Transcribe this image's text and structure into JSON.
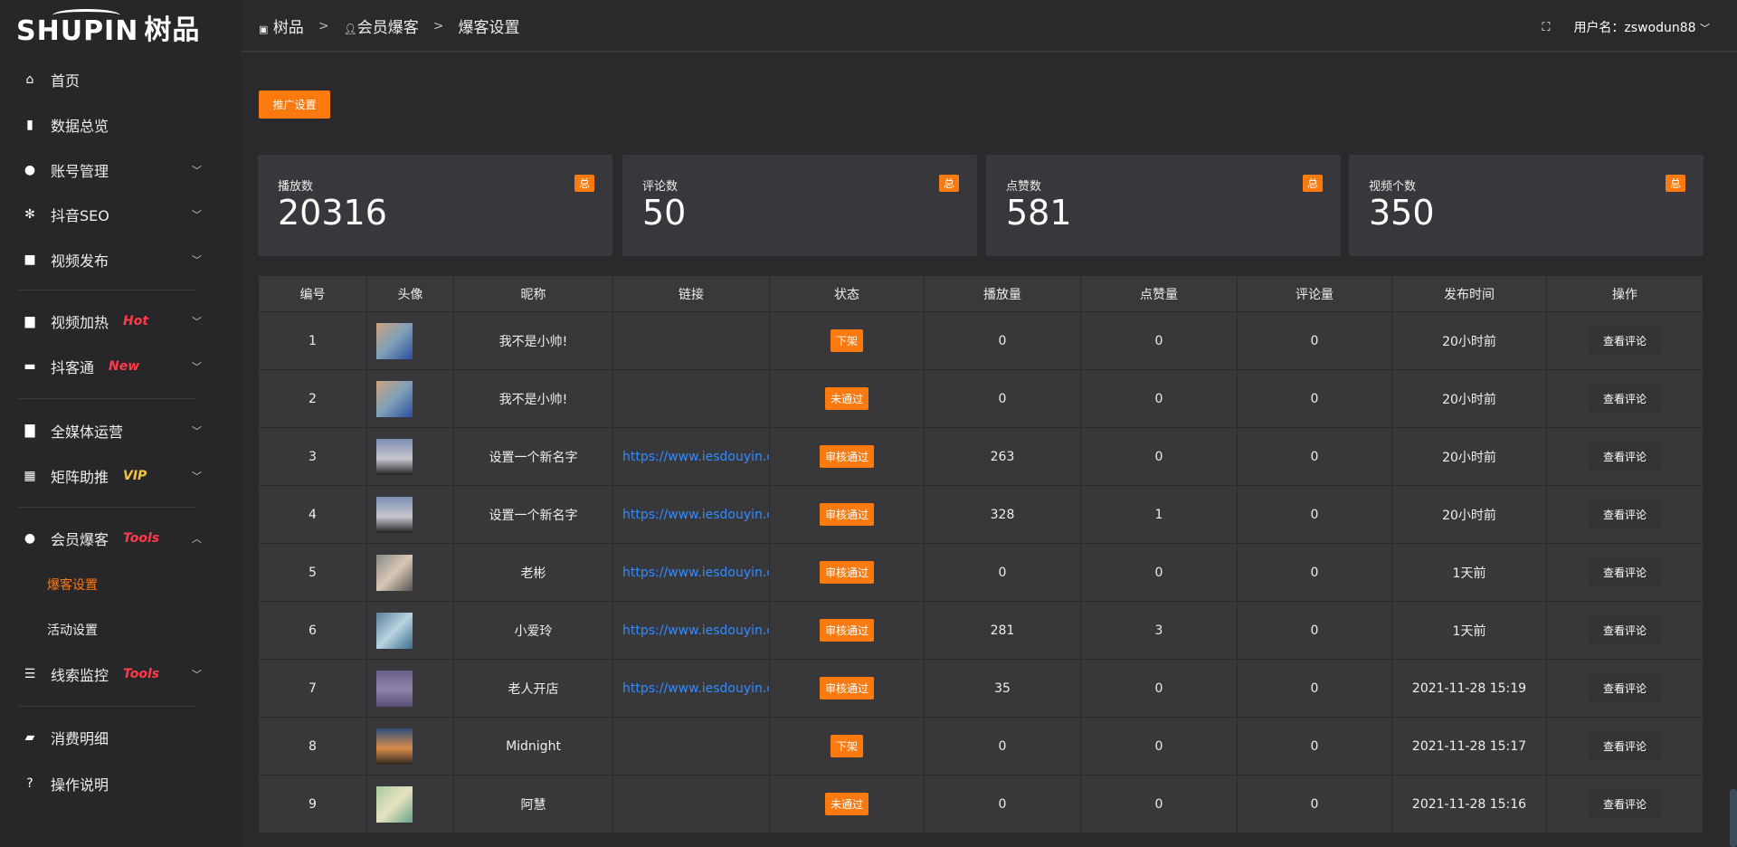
{
  "brand": {
    "logo_text": "SHUPIN",
    "logo_cn": "树品"
  },
  "sidebar": {
    "items": [
      {
        "label": "首页",
        "icon": "home-icon"
      },
      {
        "label": "数据总览",
        "icon": "bar-chart-icon"
      },
      {
        "label": "账号管理",
        "icon": "user-icon"
      },
      {
        "label": "抖音SEO",
        "icon": "gear-icon"
      },
      {
        "label": "视频发布",
        "icon": "camera-icon"
      },
      {
        "label": "视频加热",
        "icon": "monitor-icon",
        "tag": "Hot"
      },
      {
        "label": "抖客通",
        "icon": "chat-icon",
        "tag": "New"
      },
      {
        "label": "全媒体运营",
        "icon": "display-icon"
      },
      {
        "label": "矩阵助推",
        "icon": "grid-icon",
        "tag": "VIP"
      },
      {
        "label": "会员爆客",
        "icon": "user-icon",
        "tag": "Tools"
      },
      {
        "label": "线索监控",
        "icon": "sliders-icon",
        "tag": "Tools"
      },
      {
        "label": "消费明细",
        "icon": "wallet-icon"
      },
      {
        "label": "操作说明",
        "icon": "help-icon"
      }
    ],
    "sub_items": [
      {
        "label": "爆客设置",
        "active": true
      },
      {
        "label": "活动设置"
      }
    ]
  },
  "header": {
    "breadcrumb": [
      "树品",
      "会员爆客",
      "爆客设置"
    ],
    "user_label": "用户名：zswodun88"
  },
  "toolbar": {
    "promo_label": "推广设置"
  },
  "stats": [
    {
      "label": "播放数",
      "value": "20316",
      "badge": "总"
    },
    {
      "label": "评论数",
      "value": "50",
      "badge": "总"
    },
    {
      "label": "点赞数",
      "value": "581",
      "badge": "总"
    },
    {
      "label": "视频个数",
      "value": "350",
      "badge": "总"
    }
  ],
  "table": {
    "columns": [
      "编号",
      "头像",
      "昵称",
      "链接",
      "状态",
      "播放量",
      "点赞量",
      "评论量",
      "发布时间",
      "操作"
    ],
    "action_label": "查看评论",
    "rows": [
      {
        "id": "1",
        "nickname": "我不是小帅!",
        "link": "",
        "status": "下架",
        "plays": "0",
        "likes": "0",
        "comments": "0",
        "time": "20小时前"
      },
      {
        "id": "2",
        "nickname": "我不是小帅!",
        "link": "",
        "status": "未通过",
        "plays": "0",
        "likes": "0",
        "comments": "0",
        "time": "20小时前"
      },
      {
        "id": "3",
        "nickname": "设置一个新名字",
        "link": "https://www.iesdouyin.c",
        "status": "审核通过",
        "plays": "263",
        "likes": "0",
        "comments": "0",
        "time": "20小时前"
      },
      {
        "id": "4",
        "nickname": "设置一个新名字",
        "link": "https://www.iesdouyin.c",
        "status": "审核通过",
        "plays": "328",
        "likes": "1",
        "comments": "0",
        "time": "20小时前"
      },
      {
        "id": "5",
        "nickname": "老彬",
        "link": "https://www.iesdouyin.c",
        "status": "审核通过",
        "plays": "0",
        "likes": "0",
        "comments": "0",
        "time": "1天前"
      },
      {
        "id": "6",
        "nickname": "小爱玲",
        "link": "https://www.iesdouyin.c",
        "status": "审核通过",
        "plays": "281",
        "likes": "3",
        "comments": "0",
        "time": "1天前"
      },
      {
        "id": "7",
        "nickname": "老人开店",
        "link": "https://www.iesdouyin.c",
        "status": "审核通过",
        "plays": "35",
        "likes": "0",
        "comments": "0",
        "time": "2021-11-28 15:19"
      },
      {
        "id": "8",
        "nickname": "Midnight",
        "link": "",
        "status": "下架",
        "plays": "0",
        "likes": "0",
        "comments": "0",
        "time": "2021-11-28 15:17"
      },
      {
        "id": "9",
        "nickname": "阿慧",
        "link": "",
        "status": "未通过",
        "plays": "0",
        "likes": "0",
        "comments": "0",
        "time": "2021-11-28 15:16"
      }
    ]
  },
  "colors": {
    "accent": "#ff7a0e",
    "link": "#2f8cff",
    "tag_red": "#ff3b4a",
    "tag_vip": "#f5c242"
  }
}
